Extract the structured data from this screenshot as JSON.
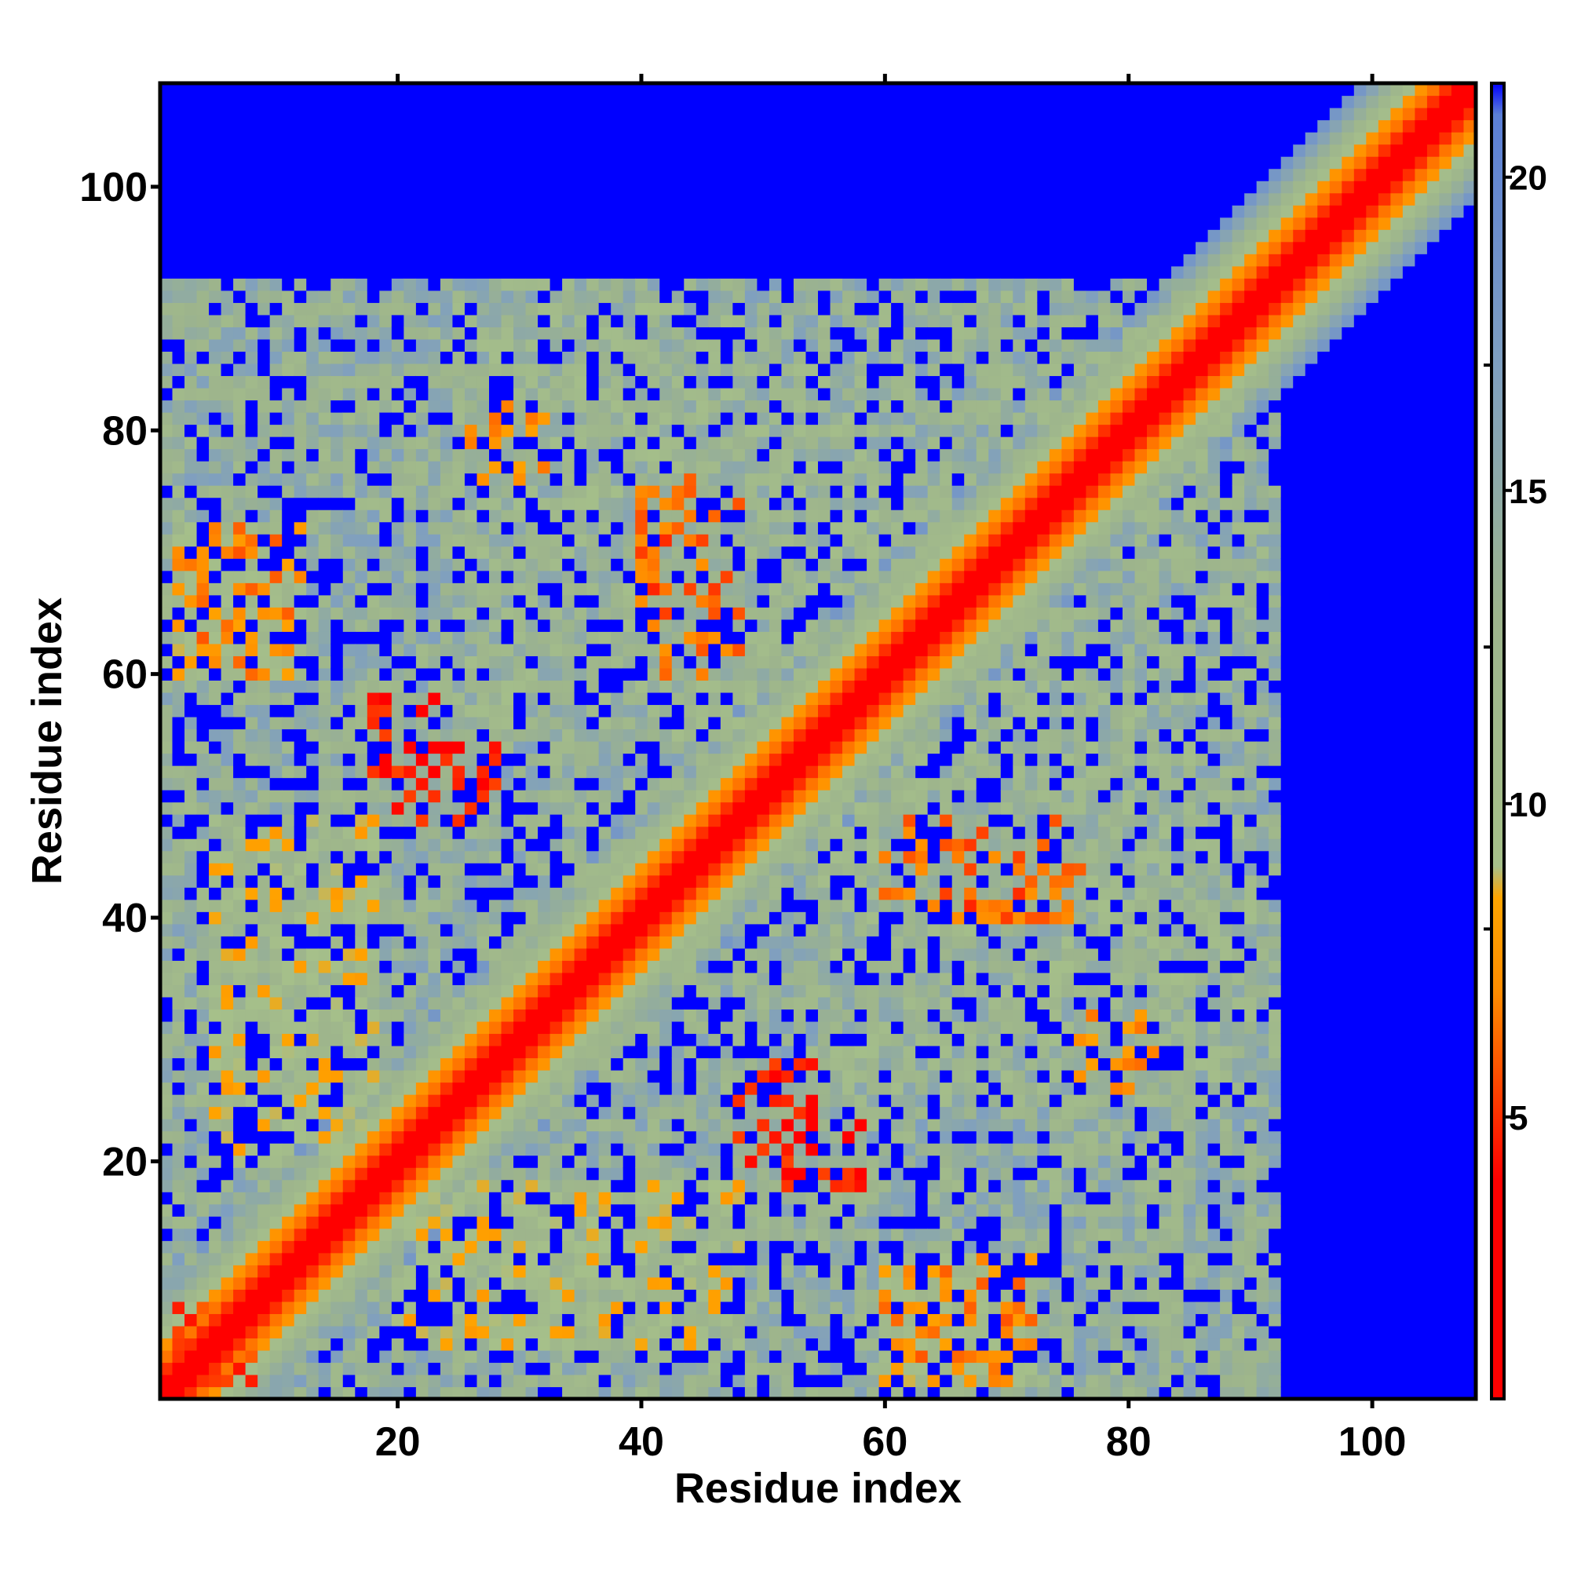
{
  "chart_data": {
    "type": "heatmap",
    "title": "",
    "xlabel": "Residue index",
    "ylabel": "Residue index",
    "n_residues": 108,
    "xlim": [
      0.5,
      108.5
    ],
    "ylim": [
      0.5,
      108.5
    ],
    "x_ticks": [
      20,
      40,
      60,
      80,
      100
    ],
    "y_ticks": [
      20,
      40,
      60,
      80,
      100
    ],
    "x_tick_labels": [
      "20",
      "40",
      "60",
      "80",
      "100"
    ],
    "y_tick_labels": [
      "20",
      "40",
      "60",
      "80",
      "100"
    ],
    "colorbar": {
      "range": [
        0.5,
        21.5
      ],
      "ticks": [
        5,
        10,
        15,
        20
      ],
      "tick_labels": [
        "5",
        "10",
        "15",
        "20"
      ],
      "cutoff_value": 21.0,
      "beyond_cutoff_color": "#0000ff",
      "stops": [
        {
          "value": 0.5,
          "color": "#ff0000"
        },
        {
          "value": 4.0,
          "color": "#ff0000"
        },
        {
          "value": 7.0,
          "color": "#ff8c00"
        },
        {
          "value": 8.5,
          "color": "#ffa500"
        },
        {
          "value": 9.0,
          "color": "#a6c08a"
        },
        {
          "value": 13.0,
          "color": "#9db48c"
        },
        {
          "value": 17.0,
          "color": "#7f9fc0"
        },
        {
          "value": 21.0,
          "color": "#5b7fd6"
        },
        {
          "value": 21.5,
          "color": "#0000ff"
        }
      ]
    },
    "matrix_description": "symmetric residue distance map; diagonal band near zero, background beyond cutoff",
    "contact_patches": [
      {
        "residues_a": [
          1,
          90
        ],
        "residues_b": [
          2,
          92
        ],
        "value": 13
      },
      {
        "residues_a": [
          20,
          48
        ],
        "residues_b": [
          5,
          18
        ],
        "value": 10
      },
      {
        "residues_a": [
          52,
          58
        ],
        "residues_b": [
          18,
          23
        ],
        "value": 5
      },
      {
        "residues_a": [
          20,
          28
        ],
        "residues_b": [
          48,
          55
        ],
        "value": 5
      },
      {
        "residues_a": [
          2,
          12
        ],
        "residues_b": [
          60,
          72
        ],
        "value": 9
      },
      {
        "residues_a": [
          25,
          60
        ],
        "residues_b": [
          55,
          85
        ],
        "value": 12
      },
      {
        "residues_a": [
          60,
          90
        ],
        "residues_b": [
          25,
          48
        ],
        "value": 12
      },
      {
        "residues_a": [
          62,
          76
        ],
        "residues_b": [
          40,
          48
        ],
        "value": 7
      },
      {
        "residues_a": [
          78,
          90
        ],
        "residues_b": [
          2,
          14
        ],
        "value": 13
      },
      {
        "residues_a": [
          60,
          72
        ],
        "residues_b": [
          3,
          12
        ],
        "value": 8
      },
      {
        "residues_a": [
          40,
          48
        ],
        "residues_b": [
          60,
          70
        ],
        "value": 7
      },
      {
        "residues_a": [
          26,
          32
        ],
        "residues_b": [
          76,
          82
        ],
        "value": 8
      },
      {
        "residues_a": [
          2,
          8
        ],
        "residues_b": [
          2,
          8
        ],
        "value": 6
      }
    ]
  }
}
